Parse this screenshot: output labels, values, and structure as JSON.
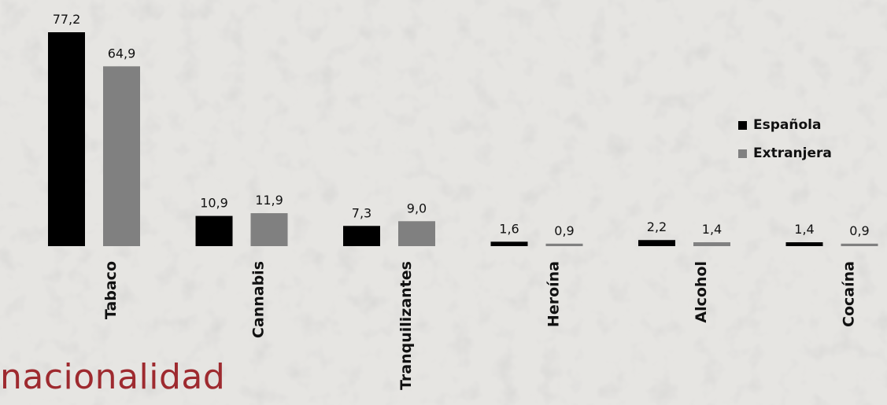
{
  "caption": "nacionalidad",
  "colors": {
    "background": "#e6e5e2",
    "caption": "#9e2a2f",
    "text": "#111111"
  },
  "chart_data": {
    "type": "bar",
    "categories": [
      "Tabaco",
      "Cannabis",
      "Tranquilizantes",
      "Heroína",
      "Alcohol",
      "Cocaína"
    ],
    "series": [
      {
        "name": "Española",
        "color": "#000000",
        "values": [
          77.2,
          10.9,
          7.3,
          1.6,
          2.2,
          1.4
        ],
        "labels": [
          "77,2",
          "10,9",
          "7,3",
          "1,6",
          "2,2",
          "1,4"
        ]
      },
      {
        "name": "Extranjera",
        "color": "#808080",
        "values": [
          64.9,
          11.9,
          9.0,
          0.9,
          1.4,
          0.9
        ],
        "labels": [
          "64,9",
          "11,9",
          "9,0",
          "0,9",
          "1,4",
          "0,9"
        ]
      }
    ],
    "ylim": [
      0,
      77.2
    ],
    "grid": false,
    "legend": "right"
  }
}
